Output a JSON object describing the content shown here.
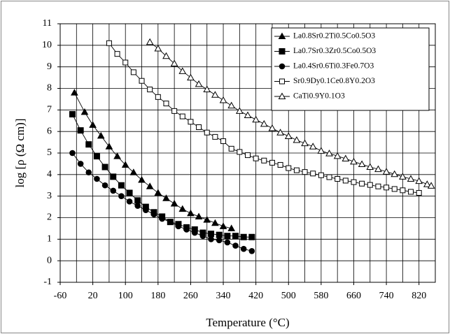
{
  "chart_data": {
    "type": "line",
    "x_label": "Temperature (°C)",
    "y_label": "log [ρ (Ω cm)]",
    "xlim": [
      -60,
      860
    ],
    "ylim": [
      -1,
      11
    ],
    "xticks": [
      -60,
      20,
      100,
      180,
      260,
      340,
      420,
      500,
      580,
      660,
      740,
      820
    ],
    "yticks": [
      -1,
      0,
      1,
      2,
      3,
      4,
      5,
      6,
      7,
      8,
      9,
      10,
      11
    ],
    "grid": true,
    "legend": "top-right",
    "series": [
      {
        "name": "La0.8Sr0.2Ti0.5Co0.5O3",
        "color": "#000000",
        "marker": "triangle-filled",
        "x": [
          -25,
          0,
          20,
          40,
          60,
          80,
          100,
          120,
          140,
          160,
          180,
          200,
          220,
          240,
          260,
          280,
          300,
          320,
          340,
          360
        ],
        "values": [
          7.8,
          6.9,
          6.3,
          5.8,
          5.3,
          4.85,
          4.45,
          4.1,
          3.75,
          3.45,
          3.15,
          2.9,
          2.65,
          2.4,
          2.2,
          2.05,
          1.9,
          1.75,
          1.6,
          1.5
        ]
      },
      {
        "name": "La0.7Sr0.3Zr0.5Co0.5O3",
        "color": "#000000",
        "marker": "square-filled",
        "x": [
          -30,
          -10,
          10,
          30,
          50,
          70,
          90,
          110,
          130,
          150,
          170,
          190,
          210,
          230,
          250,
          270,
          290,
          310,
          330,
          350,
          370,
          390,
          410
        ],
        "values": [
          6.8,
          6.05,
          5.4,
          4.85,
          4.35,
          3.9,
          3.5,
          3.15,
          2.8,
          2.5,
          2.25,
          2.05,
          1.8,
          1.7,
          1.55,
          1.45,
          1.3,
          1.25,
          1.2,
          1.15,
          1.15,
          1.1,
          1.1
        ]
      },
      {
        "name": "La0.4Sr0.6Ti0.3Fe0.7O3",
        "color": "#000000",
        "marker": "circle-filled",
        "x": [
          -30,
          -10,
          10,
          30,
          50,
          70,
          90,
          110,
          130,
          150,
          170,
          190,
          210,
          230,
          250,
          270,
          290,
          310,
          330,
          350,
          370,
          390,
          410
        ],
        "values": [
          5.0,
          4.5,
          4.1,
          3.8,
          3.5,
          3.25,
          3.0,
          2.75,
          2.55,
          2.35,
          2.15,
          1.95,
          1.8,
          1.6,
          1.45,
          1.3,
          1.15,
          1.0,
          0.95,
          0.85,
          0.7,
          0.55,
          0.45
        ]
      },
      {
        "name": "Sr0.9Dy0.1Ce0.8Y0.2O3",
        "color": "#000000",
        "marker": "square-open",
        "x": [
          60,
          80,
          100,
          120,
          140,
          160,
          180,
          200,
          220,
          240,
          260,
          280,
          300,
          320,
          340,
          360,
          380,
          400,
          420,
          440,
          460,
          480,
          500,
          520,
          540,
          560,
          580,
          600,
          620,
          640,
          660,
          680,
          700,
          720,
          740,
          760,
          780,
          800,
          820
        ],
        "values": [
          10.1,
          9.6,
          9.2,
          8.75,
          8.35,
          7.95,
          7.6,
          7.3,
          6.95,
          6.7,
          6.45,
          6.2,
          5.95,
          5.75,
          5.55,
          5.2,
          5.05,
          4.9,
          4.75,
          4.65,
          4.55,
          4.45,
          4.3,
          4.2,
          4.12,
          4.05,
          3.97,
          3.88,
          3.8,
          3.72,
          3.65,
          3.58,
          3.52,
          3.45,
          3.4,
          3.33,
          3.27,
          3.2,
          3.15
        ]
      },
      {
        "name": "CaTi0.9Y0.1O3",
        "color": "#000000",
        "marker": "triangle-open",
        "x": [
          160,
          180,
          200,
          220,
          240,
          260,
          280,
          300,
          320,
          340,
          360,
          380,
          400,
          420,
          440,
          460,
          480,
          500,
          520,
          540,
          560,
          580,
          600,
          620,
          640,
          660,
          680,
          700,
          720,
          740,
          760,
          780,
          800,
          820,
          840,
          850
        ],
        "values": [
          10.15,
          9.85,
          9.5,
          9.15,
          8.8,
          8.5,
          8.2,
          7.95,
          7.7,
          7.45,
          7.2,
          6.95,
          6.75,
          6.55,
          6.35,
          6.15,
          5.95,
          5.78,
          5.6,
          5.45,
          5.3,
          5.1,
          4.98,
          4.86,
          4.74,
          4.6,
          4.48,
          4.35,
          4.25,
          4.13,
          4.02,
          3.9,
          3.8,
          3.7,
          3.55,
          3.48
        ]
      }
    ]
  }
}
